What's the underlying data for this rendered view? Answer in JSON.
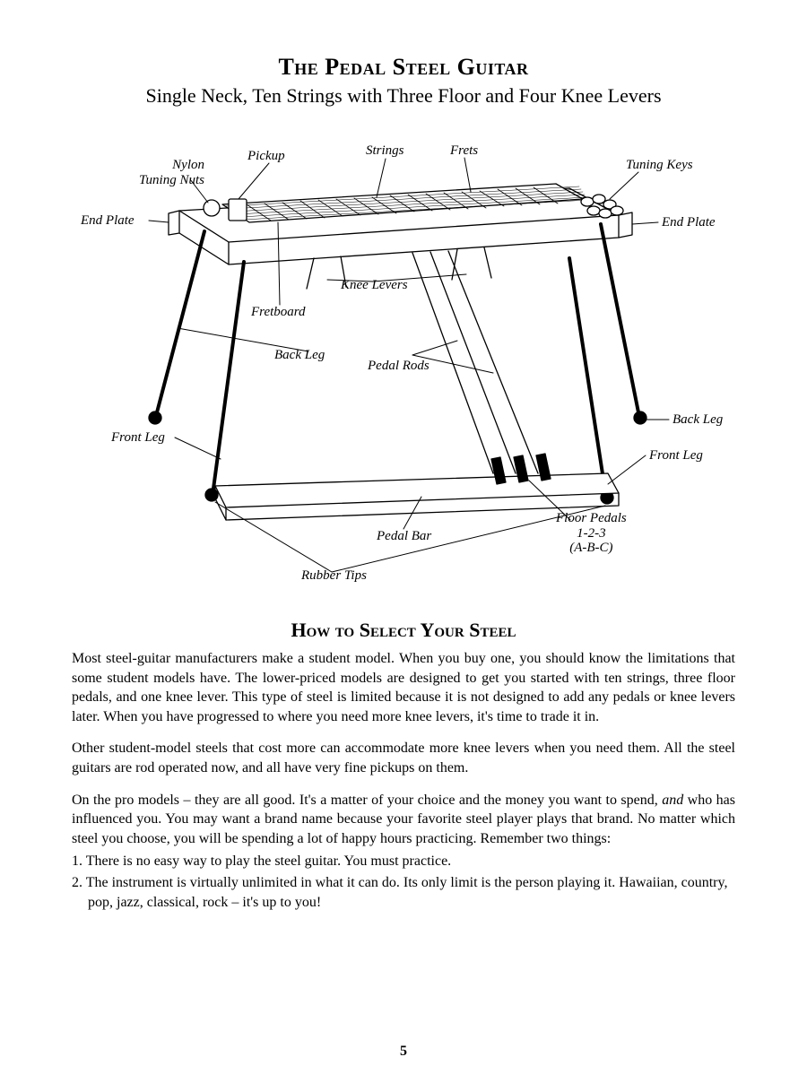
{
  "title": {
    "main": "The Pedal Steel Guitar",
    "sub": "Single Neck, Ten Strings with Three Floor and Four Knee Levers"
  },
  "diagram": {
    "type": "labeled-diagram",
    "stroke_color": "#000000",
    "stroke_width": 1.3,
    "fill_color": "#ffffff",
    "label_font": "italic 15px Georgia",
    "labels": {
      "pickup": "Pickup",
      "strings": "Strings",
      "frets": "Frets",
      "nylon_tuning_nuts": "Nylon\nTuning Nuts",
      "tuning_keys": "Tuning Keys",
      "end_plate_left": "End Plate",
      "end_plate_right": "End Plate",
      "knee_levers": "Knee Levers",
      "fretboard": "Fretboard",
      "back_leg_upper": "Back Leg",
      "pedal_rods": "Pedal Rods",
      "back_leg_lower": "Back Leg",
      "front_leg_left": "Front Leg",
      "front_leg_right": "Front Leg",
      "pedal_bar": "Pedal Bar",
      "rubber_tips": "Rubber Tips",
      "floor_pedals": "Floor Pedals\n1-2-3\n(A-B-C)"
    }
  },
  "section2": {
    "heading": "How to Select Your Steel",
    "p1": "Most steel-guitar manufacturers make a student model. When you buy one, you should know the limitations that some student models have. The lower-priced models are designed to get you started with ten strings, three floor pedals, and one knee lever. This type of steel is limited because it is not designed to add any pedals or knee levers later. When you have progressed to where you need more knee levers, it's time to trade it in.",
    "p2": "Other student-model steels that cost more can accommodate more knee levers when you need them. All the steel guitars are rod operated now, and all have very fine pickups on them.",
    "p3_a": "On the pro models – they are all good. It's a matter of your choice and the money you want to spend, ",
    "p3_and": "and",
    "p3_b": " who has influenced you. You may want a brand name because your favorite steel player plays that brand. No matter which steel you choose, you will be spending a lot of happy hours practicing. Remember two things:",
    "li1": "1. There is no easy way to play the steel guitar. You must practice.",
    "li2": "2. The instrument is virtually unlimited in what it can do. Its only limit is the person playing it. Hawaiian, country, pop, jazz, classical, rock – it's up to you!"
  },
  "page_number": "5"
}
